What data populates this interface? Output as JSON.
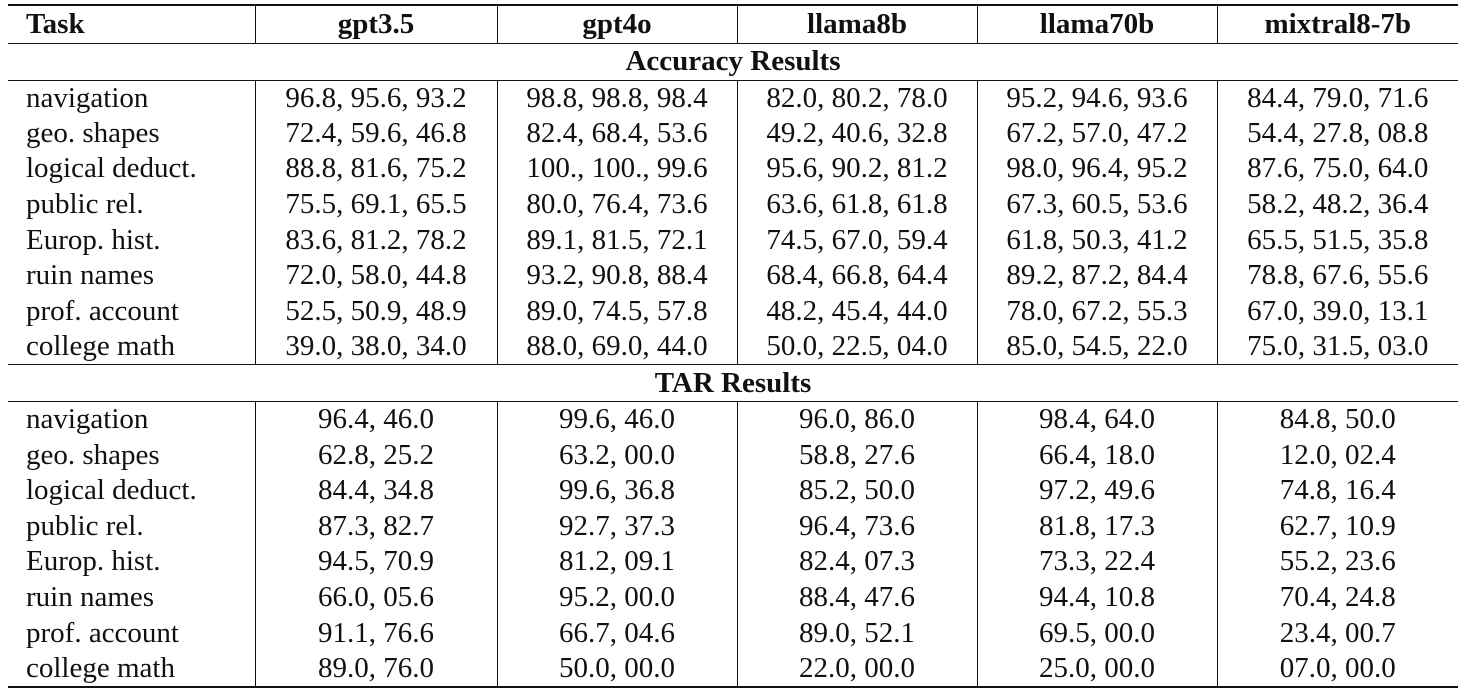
{
  "table": {
    "header": [
      "Task",
      "gpt3.5",
      "gpt4o",
      "llama8b",
      "llama70b",
      "mixtral8-7b"
    ],
    "sections": [
      {
        "title": "Accuracy Results",
        "rows": [
          [
            "navigation",
            "96.8, 95.6, 93.2",
            "98.8, 98.8, 98.4",
            "82.0, 80.2, 78.0",
            "95.2, 94.6, 93.6",
            "84.4, 79.0, 71.6"
          ],
          [
            "geo. shapes",
            "72.4, 59.6, 46.8",
            "82.4, 68.4, 53.6",
            "49.2, 40.6, 32.8",
            "67.2, 57.0, 47.2",
            "54.4, 27.8, 08.8"
          ],
          [
            "logical deduct.",
            "88.8, 81.6, 75.2",
            "100., 100., 99.6",
            "95.6, 90.2, 81.2",
            "98.0, 96.4, 95.2",
            "87.6, 75.0, 64.0"
          ],
          [
            "public rel.",
            "75.5, 69.1, 65.5",
            "80.0, 76.4, 73.6",
            "63.6, 61.8, 61.8",
            "67.3, 60.5, 53.6",
            "58.2, 48.2, 36.4"
          ],
          [
            "Europ. hist.",
            "83.6, 81.2, 78.2",
            "89.1, 81.5, 72.1",
            "74.5, 67.0, 59.4",
            "61.8, 50.3, 41.2",
            "65.5, 51.5, 35.8"
          ],
          [
            "ruin names",
            "72.0, 58.0, 44.8",
            "93.2, 90.8, 88.4",
            "68.4, 66.8, 64.4",
            "89.2, 87.2, 84.4",
            "78.8, 67.6, 55.6"
          ],
          [
            "prof. account",
            "52.5, 50.9, 48.9",
            "89.0, 74.5, 57.8",
            "48.2, 45.4, 44.0",
            "78.0, 67.2, 55.3",
            "67.0, 39.0, 13.1"
          ],
          [
            "college math",
            "39.0, 38.0, 34.0",
            "88.0, 69.0, 44.0",
            "50.0, 22.5, 04.0",
            "85.0, 54.5, 22.0",
            "75.0, 31.5, 03.0"
          ]
        ]
      },
      {
        "title": "TAR Results",
        "rows": [
          [
            "navigation",
            "96.4, 46.0",
            "99.6, 46.0",
            "96.0, 86.0",
            "98.4, 64.0",
            "84.8, 50.0"
          ],
          [
            "geo. shapes",
            "62.8, 25.2",
            "63.2, 00.0",
            "58.8, 27.6",
            "66.4, 18.0",
            "12.0, 02.4"
          ],
          [
            "logical deduct.",
            "84.4, 34.8",
            "99.6, 36.8",
            "85.2, 50.0",
            "97.2, 49.6",
            "74.8, 16.4"
          ],
          [
            "public rel.",
            "87.3, 82.7",
            "92.7, 37.3",
            "96.4, 73.6",
            "81.8, 17.3",
            "62.7, 10.9"
          ],
          [
            "Europ. hist.",
            "94.5, 70.9",
            "81.2, 09.1",
            "82.4, 07.3",
            "73.3, 22.4",
            "55.2, 23.6"
          ],
          [
            "ruin names",
            "66.0, 05.6",
            "95.2, 00.0",
            "88.4, 47.6",
            "94.4, 10.8",
            "70.4, 24.8"
          ],
          [
            "prof. account",
            "91.1, 76.6",
            "66.7, 04.6",
            "89.0, 52.1",
            "69.5, 00.0",
            "23.4, 00.7"
          ],
          [
            "college math",
            "89.0, 76.0",
            "50.0, 00.0",
            "22.0, 00.0",
            "25.0, 00.0",
            "07.0, 00.0"
          ]
        ]
      }
    ]
  }
}
